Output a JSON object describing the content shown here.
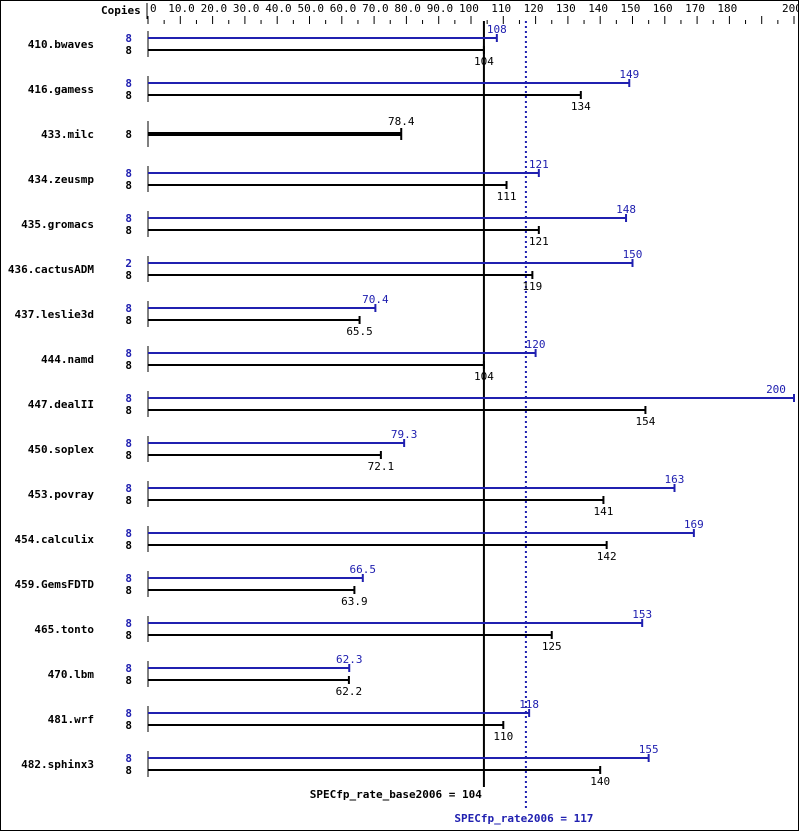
{
  "chart_data": {
    "type": "bar",
    "orientation": "horizontal",
    "copies_label": "Copies",
    "xlim": [
      0,
      200
    ],
    "ticks": [
      "0",
      "10.0",
      "20.0",
      "30.0",
      "40.0",
      "50.0",
      "60.0",
      "70.0",
      "80.0",
      "90.0",
      "100",
      "110",
      "120",
      "130",
      "140",
      "150",
      "160",
      "170",
      "180",
      "200"
    ],
    "tick_values": [
      0,
      10,
      20,
      30,
      40,
      50,
      60,
      70,
      80,
      90,
      100,
      110,
      120,
      130,
      140,
      150,
      160,
      170,
      180,
      200
    ],
    "colors": {
      "peak": "#2020b0",
      "base": "#000000"
    },
    "benchmarks": [
      {
        "name": "410.bwaves",
        "peak_copies": "8",
        "peak": 108,
        "base_copies": "8",
        "base": 104
      },
      {
        "name": "416.gamess",
        "peak_copies": "8",
        "peak": 149,
        "base_copies": "8",
        "base": 134
      },
      {
        "name": "433.milc",
        "peak_copies": null,
        "peak": null,
        "base_copies": "8",
        "base": 78.4
      },
      {
        "name": "434.zeusmp",
        "peak_copies": "8",
        "peak": 121,
        "base_copies": "8",
        "base": 111
      },
      {
        "name": "435.gromacs",
        "peak_copies": "8",
        "peak": 148,
        "base_copies": "8",
        "base": 121
      },
      {
        "name": "436.cactusADM",
        "peak_copies": "2",
        "peak": 150,
        "base_copies": "8",
        "base": 119
      },
      {
        "name": "437.leslie3d",
        "peak_copies": "8",
        "peak": 70.4,
        "base_copies": "8",
        "base": 65.5
      },
      {
        "name": "444.namd",
        "peak_copies": "8",
        "peak": 120,
        "base_copies": "8",
        "base": 104
      },
      {
        "name": "447.dealII",
        "peak_copies": "8",
        "peak": 200,
        "base_copies": "8",
        "base": 154
      },
      {
        "name": "450.soplex",
        "peak_copies": "8",
        "peak": 79.3,
        "base_copies": "8",
        "base": 72.1
      },
      {
        "name": "453.povray",
        "peak_copies": "8",
        "peak": 163,
        "base_copies": "8",
        "base": 141
      },
      {
        "name": "454.calculix",
        "peak_copies": "8",
        "peak": 169,
        "base_copies": "8",
        "base": 142
      },
      {
        "name": "459.GemsFDTD",
        "peak_copies": "8",
        "peak": 66.5,
        "base_copies": "8",
        "base": 63.9
      },
      {
        "name": "465.tonto",
        "peak_copies": "8",
        "peak": 153,
        "base_copies": "8",
        "base": 125
      },
      {
        "name": "470.lbm",
        "peak_copies": "8",
        "peak": 62.3,
        "base_copies": "8",
        "base": 62.2
      },
      {
        "name": "481.wrf",
        "peak_copies": "8",
        "peak": 118,
        "base_copies": "8",
        "base": 110
      },
      {
        "name": "482.sphinx3",
        "peak_copies": "8",
        "peak": 155,
        "base_copies": "8",
        "base": 140
      }
    ],
    "base_summary": {
      "label": "SPECfp_rate_base2006 = 104",
      "value": 104
    },
    "peak_summary": {
      "label": "SPECfp_rate2006 = 117",
      "value": 117
    }
  }
}
